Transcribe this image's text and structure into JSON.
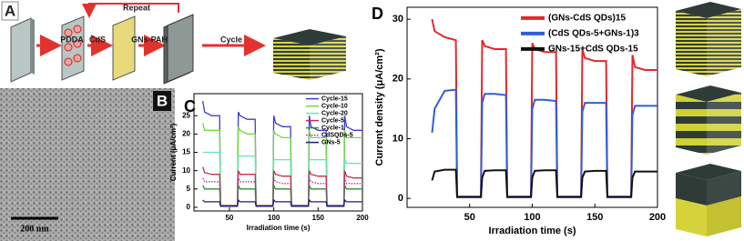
{
  "figure": {
    "panel_a": {
      "label": "A",
      "steps": [
        "PDDA",
        "CdS",
        "GNs-PAH",
        "Cycle"
      ],
      "loop": "Repeat"
    },
    "panel_b": {
      "label": "B",
      "scale_bar": "200 nm"
    }
  },
  "chart_data": [
    {
      "type": "line",
      "panel_label": "C",
      "x_label": "Irradiation time (s)",
      "y_label": "Current (μA/cm²)",
      "xlim": [
        10,
        200
      ],
      "xticks": [
        50,
        100,
        150,
        200
      ],
      "ylim": [
        -1,
        31
      ],
      "yticks": [
        0,
        5,
        10,
        15,
        20,
        25
      ],
      "legend": "upper right",
      "x": [
        20,
        22,
        30,
        39,
        40,
        59,
        60,
        62,
        70,
        79,
        80,
        99,
        100,
        102,
        110,
        119,
        120,
        139,
        140,
        142,
        150,
        159,
        160,
        179,
        180,
        182,
        190,
        200
      ],
      "series": [
        {
          "name": "Cycle-15",
          "color": "#3b3bd6",
          "style": "solid",
          "values": [
            29,
            26,
            25,
            25,
            0.5,
            0.5,
            26,
            25,
            24,
            24,
            0.5,
            0.5,
            25,
            23,
            22,
            22,
            0.5,
            0.5,
            25,
            22,
            21,
            21,
            0.5,
            0.5,
            25,
            22,
            21,
            21
          ]
        },
        {
          "name": "Cycle-10",
          "color": "#6fdc3a",
          "style": "solid",
          "values": [
            23,
            21,
            21,
            21,
            0.5,
            0.5,
            22,
            21,
            20,
            20,
            0.5,
            0.5,
            21,
            20,
            19,
            19,
            0.5,
            0.5,
            21,
            19,
            19,
            19,
            0.5,
            0.5,
            21,
            19,
            19,
            19
          ]
        },
        {
          "name": "Cycle-20",
          "color": "#62e6b0",
          "style": "solid",
          "values": [
            15,
            15,
            15,
            15,
            0.5,
            0.5,
            14,
            14,
            14,
            14,
            0.5,
            0.5,
            13,
            13,
            13,
            13,
            0.5,
            0.5,
            13,
            13,
            13,
            13,
            0.5,
            0.5,
            13,
            12,
            12,
            12
          ]
        },
        {
          "name": "Cycle-5",
          "color": "#c2304e",
          "style": "solid",
          "values": [
            11,
            9.5,
            9,
            9,
            0.5,
            0.5,
            10,
            9,
            9,
            9,
            0.5,
            0.5,
            10,
            9,
            8.5,
            8.5,
            0.5,
            0.5,
            10,
            9,
            8.5,
            8.5,
            0.5,
            0.5,
            10,
            8.5,
            8,
            8
          ]
        },
        {
          "name": "Cycle-1",
          "color": "#2e8f2e",
          "style": "solid",
          "values": [
            6,
            5,
            5,
            5,
            0.3,
            0.3,
            6,
            5,
            5,
            5,
            0.3,
            0.3,
            6,
            5,
            5,
            5,
            0.3,
            0.3,
            6,
            5,
            5,
            5,
            0.3,
            0.3,
            6,
            5,
            5,
            5
          ]
        },
        {
          "name": "CdSQDs-5",
          "color": "#b0308f",
          "style": "dotted",
          "values": [
            8,
            7,
            7,
            7,
            0.3,
            0.3,
            8,
            7,
            7,
            7,
            0.3,
            0.3,
            8,
            7,
            6.5,
            6.5,
            0.3,
            0.3,
            8,
            7,
            6.5,
            6.5,
            0.3,
            0.3,
            8,
            6.5,
            6.5,
            6.5
          ]
        },
        {
          "name": "GNs-5",
          "color": "#1c1c80",
          "style": "solid",
          "values": [
            2,
            1.5,
            1.5,
            1.5,
            0.3,
            0.3,
            2,
            1.5,
            1.5,
            1.5,
            0.3,
            0.3,
            2,
            1.5,
            1.5,
            1.5,
            0.3,
            0.3,
            2,
            1.5,
            1.5,
            1.5,
            0.3,
            0.3,
            2,
            1.5,
            1.5,
            1.5
          ]
        }
      ]
    },
    {
      "type": "line",
      "panel_label": "D",
      "x_label": "Irradiation time (s)",
      "y_label": "Current density (μA/cm²)",
      "xlim": [
        0,
        200
      ],
      "xticks": [
        50,
        100,
        150,
        200
      ],
      "ylim": [
        -1.5,
        32
      ],
      "yticks": [
        0,
        10,
        20,
        30
      ],
      "legend": "upper right",
      "x": [
        20,
        22,
        30,
        39,
        40,
        59,
        60,
        62,
        70,
        79,
        80,
        99,
        100,
        102,
        110,
        119,
        120,
        139,
        140,
        142,
        150,
        159,
        160,
        179,
        180,
        182,
        190,
        200
      ],
      "series": [
        {
          "name": "(GNs-CdS QDs)15",
          "color": "#e8262b",
          "style": "solid",
          "values": [
            30,
            28,
            27,
            26.5,
            0.3,
            0.3,
            26.5,
            25.5,
            25,
            25,
            0.3,
            0.3,
            26,
            25,
            24.5,
            24.5,
            0.3,
            0.3,
            25,
            23.5,
            23,
            23,
            0.3,
            0.3,
            24,
            22,
            21.5,
            21.5
          ]
        },
        {
          "name": "(CdS QDs-5+GNs-1)3",
          "color": "#2f5fd6",
          "style": "solid",
          "values": [
            11,
            15,
            18,
            18.2,
            0.3,
            0.3,
            16,
            17.5,
            17.5,
            17.3,
            0.3,
            0.3,
            15,
            16.5,
            16.5,
            16.3,
            0.3,
            0.3,
            14.5,
            16,
            16,
            16,
            0.3,
            0.3,
            14,
            15.5,
            15.5,
            15.5
          ]
        },
        {
          "name": "GNs-15+CdS QDs-15",
          "color": "#111111",
          "style": "solid",
          "values": [
            3,
            4.5,
            4.8,
            4.8,
            0.2,
            0.2,
            3.5,
            4.6,
            4.7,
            4.7,
            0.2,
            0.2,
            3.5,
            4.6,
            4.7,
            4.7,
            0.2,
            0.2,
            3.5,
            4.5,
            4.6,
            4.6,
            0.2,
            0.2,
            3.5,
            4.5,
            4.5,
            4.5
          ]
        }
      ]
    }
  ]
}
